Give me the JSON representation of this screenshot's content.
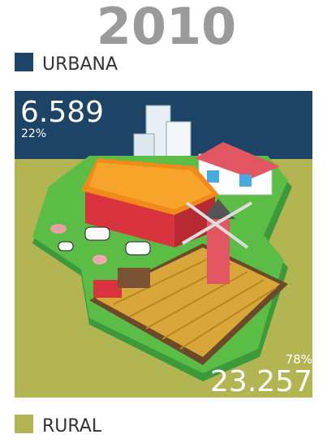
{
  "title": "2010",
  "legend": [
    {
      "label": "URBANA",
      "color": "#1d4466"
    },
    {
      "label": "RURAL",
      "color": "#b3b452"
    }
  ],
  "urban": {
    "value": "6.589",
    "percent": "22%"
  },
  "rural": {
    "percent": "78%",
    "value": "23.257"
  }
}
